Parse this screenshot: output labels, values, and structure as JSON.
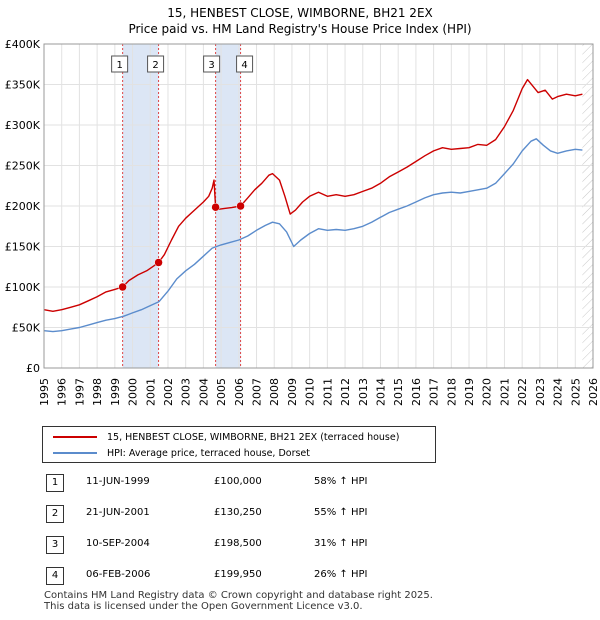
{
  "title_line1": "15, HENBEST CLOSE, WIMBORNE, BH21 2EX",
  "title_line2": "Price paid vs. HM Land Registry's House Price Index (HPI)",
  "colors": {
    "price": "#cc0000",
    "hpi": "#5b8ccc",
    "band": "#dce6f5",
    "marker_line": "#dd4444"
  },
  "legend": {
    "price_label": "15, HENBEST CLOSE, WIMBORNE, BH21 2EX (terraced house)",
    "hpi_label": "HPI: Average price, terraced house, Dorset"
  },
  "sales": [
    {
      "num": "1",
      "date": "11-JUN-1999",
      "price": "£100,000",
      "hpi": "58% ↑ HPI"
    },
    {
      "num": "2",
      "date": "21-JUN-2001",
      "price": "£130,250",
      "hpi": "55% ↑ HPI"
    },
    {
      "num": "3",
      "date": "10-SEP-2004",
      "price": "£198,500",
      "hpi": "31% ↑ HPI"
    },
    {
      "num": "4",
      "date": "06-FEB-2006",
      "price": "£199,950",
      "hpi": "26% ↑ HPI"
    }
  ],
  "footer_line1": "Contains HM Land Registry data © Crown copyright and database right 2025.",
  "footer_line2": "This data is licensed under the Open Government Licence v3.0.",
  "chart_data": {
    "type": "line",
    "title": "15, HENBEST CLOSE, WIMBORNE, BH21 2EX — Price paid vs. HM Land Registry's House Price Index (HPI)",
    "xlabel": "",
    "ylabel": "",
    "xlim": [
      1995,
      2026
    ],
    "ylim": [
      0,
      400000
    ],
    "x_ticks": [
      "1995",
      "1996",
      "1997",
      "1998",
      "1999",
      "2000",
      "2001",
      "2002",
      "2003",
      "2004",
      "2005",
      "2006",
      "2007",
      "2008",
      "2009",
      "2010",
      "2011",
      "2012",
      "2013",
      "2014",
      "2015",
      "2016",
      "2017",
      "2018",
      "2019",
      "2020",
      "2021",
      "2022",
      "2023",
      "2024",
      "2025",
      "2026"
    ],
    "y_ticks": [
      {
        "value": 0,
        "label": "£0"
      },
      {
        "value": 50000,
        "label": "£50K"
      },
      {
        "value": 100000,
        "label": "£100K"
      },
      {
        "value": 150000,
        "label": "£150K"
      },
      {
        "value": 200000,
        "label": "£200K"
      },
      {
        "value": 250000,
        "label": "£250K"
      },
      {
        "value": 300000,
        "label": "£300K"
      },
      {
        "value": 350000,
        "label": "£350K"
      },
      {
        "value": 400000,
        "label": "£400K"
      }
    ],
    "grid": true,
    "shaded_bands": [
      [
        1999.44,
        2001.47
      ],
      [
        2004.69,
        2006.1
      ]
    ],
    "future_hatch_from": 2025.4,
    "markers": [
      {
        "label": "1",
        "x": 1999.44,
        "y": 100000
      },
      {
        "label": "2",
        "x": 2001.47,
        "y": 130250
      },
      {
        "label": "3",
        "x": 2004.69,
        "y": 198500
      },
      {
        "label": "4",
        "x": 2006.1,
        "y": 199950
      }
    ],
    "series": [
      {
        "name": "15, HENBEST CLOSE, WIMBORNE, BH21 2EX (terraced house)",
        "color": "#cc0000",
        "x": [
          1995,
          1995.5,
          1996,
          1996.5,
          1997,
          1997.5,
          1998,
          1998.5,
          1999,
          1999.44,
          1999.8,
          2000.3,
          2000.8,
          2001.2,
          2001.47,
          2001.8,
          2002.2,
          2002.6,
          2003,
          2003.5,
          2004,
          2004.3,
          2004.5,
          2004.6,
          2004.69,
          2004.9,
          2005.2,
          2005.6,
          2006.1,
          2006.5,
          2006.9,
          2007.3,
          2007.7,
          2007.9,
          2008.3,
          2008.6,
          2008.9,
          2009.2,
          2009.6,
          2010,
          2010.5,
          2011,
          2011.5,
          2012,
          2012.5,
          2013,
          2013.5,
          2014,
          2014.5,
          2015,
          2015.5,
          2016,
          2016.5,
          2017,
          2017.5,
          2018,
          2018.5,
          2019,
          2019.5,
          2020,
          2020.5,
          2021,
          2021.5,
          2022,
          2022.3,
          2022.6,
          2022.9,
          2023.3,
          2023.7,
          2024,
          2024.5,
          2025,
          2025.4
        ],
        "y": [
          72000,
          70000,
          72000,
          75000,
          78000,
          83000,
          88000,
          94000,
          97000,
          100000,
          108000,
          115000,
          120000,
          126000,
          130250,
          140000,
          158000,
          175000,
          185000,
          195000,
          205000,
          212000,
          222000,
          232000,
          198500,
          196000,
          197000,
          198000,
          199950,
          210000,
          220000,
          228000,
          238000,
          240000,
          232000,
          212000,
          190000,
          195000,
          205000,
          212000,
          217000,
          212000,
          214000,
          212000,
          214000,
          218000,
          222000,
          228000,
          236000,
          242000,
          248000,
          255000,
          262000,
          268000,
          272000,
          270000,
          271000,
          272000,
          276000,
          275000,
          282000,
          298000,
          318000,
          345000,
          356000,
          348000,
          340000,
          343000,
          332000,
          335000,
          338000,
          336000,
          338000
        ]
      },
      {
        "name": "HPI: Average price, terraced house, Dorset",
        "color": "#5b8ccc",
        "x": [
          1995,
          1995.5,
          1996,
          1996.5,
          1997,
          1997.5,
          1998,
          1998.5,
          1999,
          1999.5,
          2000,
          2000.5,
          2001,
          2001.5,
          2002,
          2002.5,
          2003,
          2003.5,
          2004,
          2004.5,
          2005,
          2005.5,
          2006,
          2006.5,
          2007,
          2007.5,
          2007.9,
          2008.3,
          2008.7,
          2009.1,
          2009.5,
          2010,
          2010.5,
          2011,
          2011.5,
          2012,
          2012.5,
          2013,
          2013.5,
          2014,
          2014.5,
          2015,
          2015.5,
          2016,
          2016.5,
          2017,
          2017.5,
          2018,
          2018.5,
          2019,
          2019.5,
          2020,
          2020.5,
          2021,
          2021.5,
          2022,
          2022.5,
          2022.8,
          2023.2,
          2023.6,
          2024,
          2024.5,
          2025,
          2025.4
        ],
        "y": [
          46000,
          45000,
          46000,
          48000,
          50000,
          53000,
          56000,
          59000,
          61000,
          64000,
          68000,
          72000,
          77000,
          82000,
          95000,
          110000,
          120000,
          128000,
          138000,
          148000,
          152000,
          155000,
          158000,
          163000,
          170000,
          176000,
          180000,
          178000,
          168000,
          150000,
          158000,
          166000,
          172000,
          170000,
          171000,
          170000,
          172000,
          175000,
          180000,
          186000,
          192000,
          196000,
          200000,
          205000,
          210000,
          214000,
          216000,
          217000,
          216000,
          218000,
          220000,
          222000,
          228000,
          240000,
          252000,
          268000,
          280000,
          283000,
          275000,
          268000,
          265000,
          268000,
          270000,
          269000
        ]
      }
    ]
  }
}
